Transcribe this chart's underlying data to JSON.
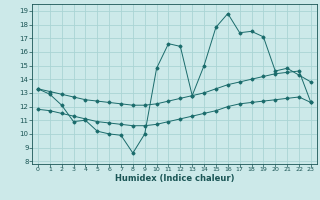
{
  "title": "",
  "xlabel": "Humidex (Indice chaleur)",
  "bg_color": "#cce9e9",
  "grid_color": "#aad4d4",
  "line_color": "#1a6b6b",
  "x_hours": [
    0,
    1,
    2,
    3,
    4,
    5,
    6,
    7,
    8,
    9,
    10,
    11,
    12,
    13,
    14,
    15,
    16,
    17,
    18,
    19,
    20,
    21,
    22,
    23
  ],
  "y_main": [
    13.3,
    12.9,
    12.1,
    10.9,
    11.0,
    10.2,
    10.0,
    9.9,
    8.6,
    10.0,
    14.8,
    16.6,
    16.4,
    12.8,
    15.0,
    17.8,
    18.8,
    17.4,
    17.5,
    17.1,
    14.6,
    14.8,
    14.3,
    13.8
  ],
  "y_line2": [
    13.3,
    13.1,
    12.9,
    12.7,
    12.5,
    12.4,
    12.3,
    12.2,
    12.1,
    12.1,
    12.2,
    12.4,
    12.6,
    12.8,
    13.0,
    13.3,
    13.6,
    13.8,
    14.0,
    14.2,
    14.4,
    14.5,
    14.6,
    12.3
  ],
  "y_line3": [
    11.8,
    11.7,
    11.5,
    11.3,
    11.1,
    10.9,
    10.8,
    10.7,
    10.6,
    10.6,
    10.7,
    10.9,
    11.1,
    11.3,
    11.5,
    11.7,
    12.0,
    12.2,
    12.3,
    12.4,
    12.5,
    12.6,
    12.7,
    12.3
  ],
  "ylim": [
    7.8,
    19.5
  ],
  "yticks": [
    8,
    9,
    10,
    11,
    12,
    13,
    14,
    15,
    16,
    17,
    18,
    19
  ],
  "xticks": [
    0,
    1,
    2,
    3,
    4,
    5,
    6,
    7,
    8,
    9,
    10,
    11,
    12,
    13,
    14,
    15,
    16,
    17,
    18,
    19,
    20,
    21,
    22,
    23
  ]
}
